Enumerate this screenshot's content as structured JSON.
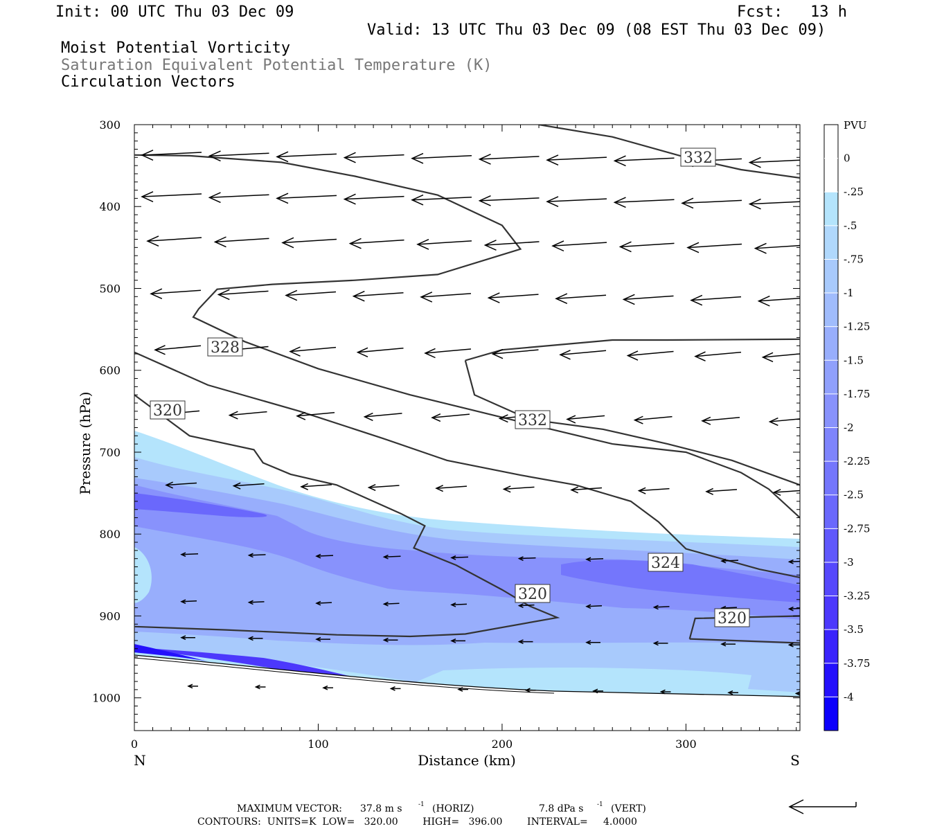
{
  "header": {
    "init": "Init: 00 UTC Thu 03 Dec 09",
    "fcst": "Fcst:   13 h",
    "valid": "Valid: 13 UTC Thu 03 Dec 09 (08 EST Thu 03 Dec 09)",
    "field1": "Moist Potential Vorticity",
    "field2": "Saturation Equivalent Potential Temperature (K)",
    "field3": "Circulation Vectors"
  },
  "chart_data": {
    "type": "cross-section (filled contour + line contour + vectors)",
    "xlabel": "Distance (km)",
    "ylabel": "Pressure (hPa)",
    "xlim": [
      0,
      362
    ],
    "ylim": [
      1040,
      300
    ],
    "x_ticks": [
      "0",
      "100",
      "200",
      "300"
    ],
    "y_ticks": [
      "300",
      "400",
      "500",
      "600",
      "700",
      "800",
      "900",
      "1000"
    ],
    "x_end_labels": {
      "left": "N",
      "right": "S"
    },
    "colorbar": {
      "unit": "PVU",
      "levels": [
        "0",
        "-.25",
        "-.5",
        "-.75",
        "-1",
        "-1.25",
        "-1.5",
        "-1.75",
        "-2",
        "-2.25",
        "-2.5",
        "-2.75",
        "-3",
        "-3.25",
        "-3.5",
        "-3.75",
        "-4"
      ],
      "colors": [
        "#ffffff",
        "#ffffff",
        "#b4e4fc",
        "#b0d8fc",
        "#a8cafc",
        "#a0bcfc",
        "#98aefc",
        "#90a0fc",
        "#8892fc",
        "#7e84fc",
        "#7476fc",
        "#6a68fc",
        "#6058fc",
        "#5648fc",
        "#4c38fc",
        "#3a24fc",
        "#2410fc",
        "#0c00fc"
      ]
    },
    "theta_es_contours": [
      {
        "label": "320",
        "points": [
          [
            0,
            913
          ],
          [
            50,
            917
          ],
          [
            110,
            923
          ],
          [
            150,
            925
          ],
          [
            180,
            922
          ],
          [
            230,
            902
          ],
          [
            215,
            888
          ],
          [
            200,
            868
          ],
          [
            175,
            838
          ],
          [
            152,
            817
          ],
          [
            158,
            790
          ],
          [
            145,
            775
          ],
          [
            125,
            755
          ],
          [
            110,
            740
          ],
          [
            85,
            727
          ],
          [
            70,
            713
          ],
          [
            65,
            697
          ],
          [
            30,
            680
          ],
          [
            0,
            630
          ]
        ]
      },
      {
        "label": "320",
        "points": [
          [
            302,
            928
          ],
          [
            305,
            903
          ],
          [
            362,
            900
          ]
        ]
      },
      {
        "label": "320",
        "points": [
          [
            302,
            928
          ],
          [
            362,
            933
          ]
        ]
      },
      {
        "label": "324",
        "points": [
          [
            0,
            578
          ],
          [
            40,
            618
          ],
          [
            90,
            650
          ],
          [
            135,
            683
          ],
          [
            170,
            710
          ],
          [
            210,
            728
          ],
          [
            240,
            740
          ],
          [
            270,
            760
          ],
          [
            285,
            785
          ],
          [
            300,
            818
          ],
          [
            340,
            843
          ],
          [
            362,
            853
          ]
        ]
      },
      {
        "label": "328",
        "points": [
          [
            0,
            337
          ],
          [
            30,
            338
          ],
          [
            80,
            346
          ],
          [
            120,
            363
          ],
          [
            165,
            386
          ],
          [
            200,
            423
          ],
          [
            210,
            452
          ],
          [
            165,
            483
          ],
          [
            120,
            490
          ],
          [
            75,
            495
          ],
          [
            45,
            501
          ],
          [
            35,
            525
          ],
          [
            32,
            535
          ],
          [
            60,
            565
          ],
          [
            100,
            598
          ],
          [
            150,
            630
          ],
          [
            210,
            663
          ],
          [
            260,
            690
          ],
          [
            300,
            700
          ],
          [
            330,
            725
          ],
          [
            345,
            745
          ],
          [
            362,
            780
          ]
        ]
      },
      {
        "label": "332",
        "points": [
          [
            220,
            300
          ],
          [
            260,
            315
          ],
          [
            300,
            340
          ],
          [
            330,
            355
          ],
          [
            362,
            365
          ]
        ]
      },
      {
        "label": "332",
        "points": [
          [
            180,
            588
          ],
          [
            185,
            630
          ],
          [
            215,
            660
          ],
          [
            255,
            672
          ],
          [
            290,
            690
          ],
          [
            325,
            710
          ],
          [
            362,
            740
          ]
        ]
      },
      {
        "label": "332",
        "points": [
          [
            180,
            588
          ],
          [
            200,
            575
          ],
          [
            260,
            563
          ],
          [
            290,
            563
          ],
          [
            362,
            562
          ]
        ]
      }
    ],
    "label_values": [
      "332",
      "328",
      "320",
      "332",
      "324",
      "320",
      "320"
    ],
    "max_vector": "37.8 m s⁻¹ (HORIZ)",
    "max_vector_vert": "7.8 dPa s⁻¹ (VERT)"
  },
  "footer": {
    "max_vector_label": "MAXIMUM VECTOR:",
    "max_horiz": "37.8 m s",
    "max_horiz_unit": "(HORIZ)",
    "max_vert": "7.8 dPa s",
    "max_vert_unit": "(VERT)",
    "exp": "-1",
    "contours": "CONTOURS:  UNITS=K  LOW=   320.00        HIGH=   396.00        INTERVAL=     4.0000"
  }
}
